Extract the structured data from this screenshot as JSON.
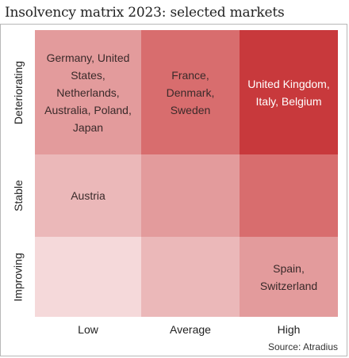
{
  "chart_data": {
    "type": "heatmap",
    "title": "Insolvency matrix 2023: selected markets",
    "source": "Source: Atradius",
    "x_categories": [
      "Low",
      "Average",
      "High"
    ],
    "y_categories": [
      "Deteriorating",
      "Stable",
      "Improving"
    ],
    "intensity": [
      [
        2,
        3,
        5
      ],
      [
        1,
        2,
        3
      ],
      [
        0,
        1,
        2
      ]
    ],
    "cells": [
      [
        "Germany, United States, Netherlands, Australia, Poland, Japan",
        "France, Denmark, Sweden",
        "United Kingdom, Italy, Belgium"
      ],
      [
        "Austria",
        "",
        ""
      ],
      [
        "",
        "",
        "Spain, Switzerland"
      ]
    ],
    "palette": [
      "#f5d9da",
      "#ebb8b9",
      "#e39b9c",
      "#d86d6e",
      "#d86d6e",
      "#c8393c"
    ]
  }
}
